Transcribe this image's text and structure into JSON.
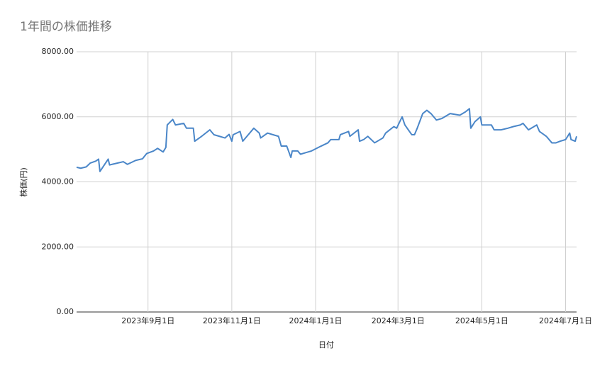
{
  "chart_data": {
    "type": "line",
    "title": "1年間の株価推移",
    "x_label": "日付",
    "y_label": "株価(円)",
    "color": "#4a86c8",
    "grid": true,
    "xlim": [
      "2023-07-11",
      "2024-07-09"
    ],
    "xticks": [
      {
        "value": "2023-09-01",
        "label": "2023年9月1日"
      },
      {
        "value": "2023-11-01",
        "label": "2023年11月1日"
      },
      {
        "value": "2024-01-01",
        "label": "2024年1月1日"
      },
      {
        "value": "2024-03-01",
        "label": "2024年3月1日"
      },
      {
        "value": "2024-05-01",
        "label": "2024年5月1日"
      },
      {
        "value": "2024-07-01",
        "label": "2024年7月1日"
      }
    ],
    "ylim": [
      0,
      8000
    ],
    "yticks": [
      {
        "value": 0,
        "label": "0.00"
      },
      {
        "value": 2000,
        "label": "2000.00"
      },
      {
        "value": 4000,
        "label": "4000.00"
      },
      {
        "value": 6000,
        "label": "6000.00"
      },
      {
        "value": 8000,
        "label": "8000.00"
      }
    ],
    "x": [
      "2023-07-11",
      "2023-07-14",
      "2023-07-18",
      "2023-07-21",
      "2023-07-25",
      "2023-07-27",
      "2023-07-28",
      "2023-08-03",
      "2023-08-04",
      "2023-08-10",
      "2023-08-14",
      "2023-08-17",
      "2023-08-23",
      "2023-08-28",
      "2023-08-31",
      "2023-09-05",
      "2023-09-08",
      "2023-09-12",
      "2023-09-14",
      "2023-09-15",
      "2023-09-19",
      "2023-09-21",
      "2023-09-27",
      "2023-09-29",
      "2023-10-04",
      "2023-10-05",
      "2023-10-10",
      "2023-10-16",
      "2023-10-19",
      "2023-10-23",
      "2023-10-27",
      "2023-10-30",
      "2023-11-01",
      "2023-11-02",
      "2023-11-07",
      "2023-11-09",
      "2023-11-13",
      "2023-11-17",
      "2023-11-21",
      "2023-11-22",
      "2023-11-27",
      "2023-12-01",
      "2023-12-05",
      "2023-12-07",
      "2023-12-11",
      "2023-12-14",
      "2023-12-15",
      "2023-12-19",
      "2023-12-21",
      "2023-12-25",
      "2023-12-29",
      "2024-01-05",
      "2024-01-10",
      "2024-01-12",
      "2024-01-18",
      "2024-01-19",
      "2024-01-25",
      "2024-01-26",
      "2024-02-01",
      "2024-02-02",
      "2024-02-05",
      "2024-02-08",
      "2024-02-13",
      "2024-02-19",
      "2024-02-21",
      "2024-02-27",
      "2024-02-29",
      "2024-03-04",
      "2024-03-06",
      "2024-03-11",
      "2024-03-13",
      "2024-03-15",
      "2024-03-19",
      "2024-03-22",
      "2024-03-25",
      "2024-03-29",
      "2024-04-02",
      "2024-04-08",
      "2024-04-15",
      "2024-04-19",
      "2024-04-22",
      "2024-04-23",
      "2024-04-26",
      "2024-04-30",
      "2024-05-01",
      "2024-05-08",
      "2024-05-10",
      "2024-05-15",
      "2024-05-20",
      "2024-05-24",
      "2024-05-29",
      "2024-05-31",
      "2024-06-04",
      "2024-06-10",
      "2024-06-12",
      "2024-06-17",
      "2024-06-21",
      "2024-06-24",
      "2024-06-27",
      "2024-07-01",
      "2024-07-04",
      "2024-07-05",
      "2024-07-08",
      "2024-07-09"
    ],
    "values": [
      4450,
      4420,
      4460,
      4580,
      4640,
      4700,
      4320,
      4700,
      4520,
      4580,
      4620,
      4540,
      4660,
      4710,
      4870,
      4950,
      5030,
      4920,
      5060,
      5750,
      5920,
      5750,
      5800,
      5650,
      5650,
      5250,
      5400,
      5600,
      5450,
      5400,
      5350,
      5460,
      5250,
      5450,
      5550,
      5250,
      5450,
      5650,
      5500,
      5350,
      5500,
      5450,
      5400,
      5100,
      5100,
      4750,
      4950,
      4950,
      4850,
      4900,
      4950,
      5100,
      5200,
      5300,
      5300,
      5450,
      5550,
      5400,
      5600,
      5250,
      5300,
      5400,
      5200,
      5350,
      5500,
      5700,
      5650,
      6000,
      5750,
      5450,
      5450,
      5650,
      6100,
      6200,
      6100,
      5900,
      5950,
      6100,
      6050,
      6150,
      6250,
      5650,
      5850,
      6000,
      5750,
      5750,
      5600,
      5600,
      5650,
      5700,
      5750,
      5800,
      5600,
      5750,
      5550,
      5400,
      5200,
      5200,
      5250,
      5300,
      5500,
      5300,
      5250,
      5400
    ]
  }
}
